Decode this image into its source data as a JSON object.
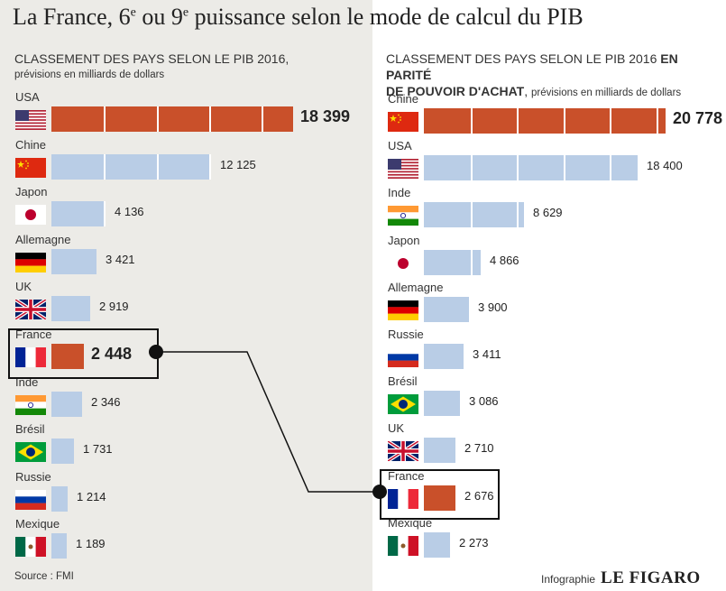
{
  "title_main": "La France, 6",
  "title_sup1": "e",
  "title_mid": " ou 9",
  "title_sup2": "e",
  "title_end": " puissance selon le mode de calcul du PIB",
  "chart_data": [
    {
      "type": "bar",
      "subtitle_main": "CLASSEMENT DES PAYS SELON LE PIB 2016,",
      "subtitle_unit": "prévisions en milliards de dollars",
      "highlight": "France",
      "rows": [
        {
          "country": "USA",
          "value": 18399,
          "label": "18 399",
          "flag": "usa-flag-icon"
        },
        {
          "country": "Chine",
          "value": 12125,
          "label": "12 125",
          "flag": "china-flag-icon"
        },
        {
          "country": "Japon",
          "value": 4136,
          "label": "4 136",
          "flag": "japan-flag-icon"
        },
        {
          "country": "Allemagne",
          "value": 3421,
          "label": "3 421",
          "flag": "germany-flag-icon"
        },
        {
          "country": "UK",
          "value": 2919,
          "label": "2 919",
          "flag": "uk-flag-icon"
        },
        {
          "country": "France",
          "value": 2448,
          "label": "2 448",
          "flag": "france-flag-icon"
        },
        {
          "country": "Inde",
          "value": 2346,
          "label": "2 346",
          "flag": "india-flag-icon"
        },
        {
          "country": "Brésil",
          "value": 1731,
          "label": "1 731",
          "flag": "brazil-flag-icon"
        },
        {
          "country": "Russie",
          "value": 1214,
          "label": "1 214",
          "flag": "russia-flag-icon"
        },
        {
          "country": "Mexique",
          "value": 1189,
          "label": "1 189",
          "flag": "mexico-flag-icon"
        }
      ]
    },
    {
      "type": "bar",
      "subtitle_main": "CLASSEMENT DES PAYS SELON LE PIB 2016",
      "subtitle_bold1": "EN PARITÉ",
      "subtitle_bold2": "DE POUVOIR D'ACHAT",
      "subtitle_unit": "prévisions en milliards de dollars",
      "highlight": "France",
      "rows": [
        {
          "country": "Chine",
          "value": 20778,
          "label": "20 778",
          "flag": "china-flag-icon"
        },
        {
          "country": "USA",
          "value": 18400,
          "label": "18 400",
          "flag": "usa-flag-icon"
        },
        {
          "country": "Inde",
          "value": 8629,
          "label": "8 629",
          "flag": "india-flag-icon"
        },
        {
          "country": "Japon",
          "value": 4866,
          "label": "4 866",
          "flag": "japan-flag-icon"
        },
        {
          "country": "Allemagne",
          "value": 3900,
          "label": "3 900",
          "flag": "germany-flag-icon"
        },
        {
          "country": "Russie",
          "value": 3411,
          "label": "3 411",
          "flag": "russia-flag-icon"
        },
        {
          "country": "Brésil",
          "value": 3086,
          "label": "3 086",
          "flag": "brazil-flag-icon"
        },
        {
          "country": "UK",
          "value": 2710,
          "label": "2 710",
          "flag": "uk-flag-icon"
        },
        {
          "country": "France",
          "value": 2676,
          "label": "2 676",
          "flag": "france-flag-icon"
        },
        {
          "country": "Mexique",
          "value": 2273,
          "label": "2 273",
          "flag": "mexico-flag-icon"
        }
      ]
    }
  ],
  "colors": {
    "top_bar": "#c9502a",
    "other_bar": "#b9cde6",
    "highlight_bar": "#c9502a"
  },
  "source": "Source : FMI",
  "credit_prefix": "Infographie",
  "credit_brand": "LE FIGARO"
}
